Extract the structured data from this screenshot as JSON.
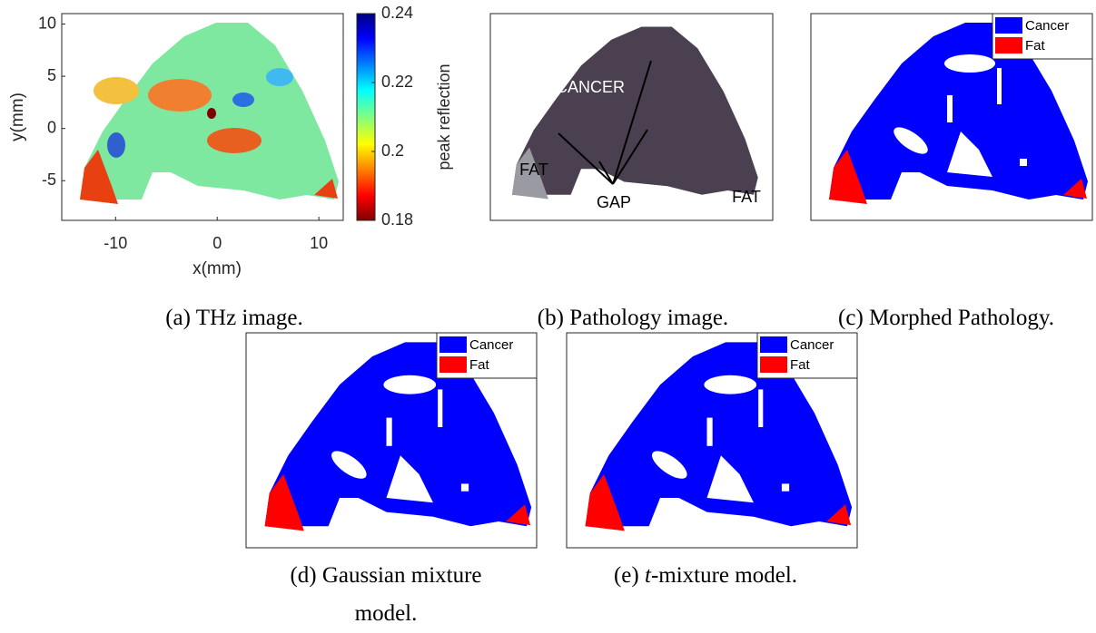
{
  "panels": [
    {
      "caption": "(a) THz image.",
      "x_label": "x(mm)",
      "y_label": "y(mm)",
      "xticks": [
        -10,
        0,
        10
      ],
      "yticks": [
        10,
        5,
        0,
        -5
      ],
      "xlim": [
        -15.3,
        12.4
      ],
      "ylim": [
        -8.8,
        11
      ],
      "colorbar": {
        "label": "peak reflection",
        "ticks": [
          0.24,
          0.22,
          0.2,
          0.18
        ],
        "lim": [
          0.18,
          0.24
        ]
      }
    },
    {
      "caption": "(b) Pathology image.",
      "labels": [
        "CANCER",
        "FAT",
        "GAP",
        "FAT"
      ]
    },
    {
      "caption": "(c) Morphed Pathology.",
      "legend": [
        {
          "name": "Cancer",
          "color": "#0000ff"
        },
        {
          "name": "Fat",
          "color": "#ff0000"
        }
      ]
    },
    {
      "caption": "(d) Gaussian mixture model.",
      "legend": [
        {
          "name": "Cancer",
          "color": "#0000ff"
        },
        {
          "name": "Fat",
          "color": "#ff0000"
        }
      ]
    },
    {
      "caption": [
        "(e) ",
        "t",
        "-mixture model."
      ],
      "legend": [
        {
          "name": "Cancer",
          "color": "#0000ff"
        },
        {
          "name": "Fat",
          "color": "#ff0000"
        }
      ]
    }
  ]
}
